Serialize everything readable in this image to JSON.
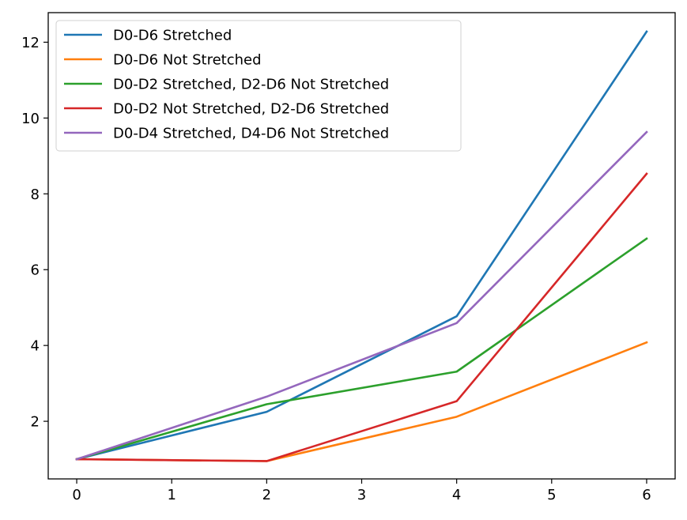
{
  "chart_data": {
    "type": "line",
    "title": "",
    "xlabel": "",
    "ylabel": "",
    "x": [
      0,
      2,
      4,
      6
    ],
    "xlim": [
      -0.3,
      6.3
    ],
    "ylim": [
      0.48,
      12.78
    ],
    "xticks": [
      0,
      1,
      2,
      3,
      4,
      5,
      6
    ],
    "yticks": [
      2,
      4,
      6,
      8,
      10,
      12
    ],
    "grid": false,
    "legend_position": "upper-left",
    "series": [
      {
        "name": "D0-D6 Stretched",
        "color": "#1f77b4",
        "values": [
          1.0,
          2.25,
          4.77,
          12.28
        ]
      },
      {
        "name": "D0-D6 Not Stretched",
        "color": "#ff7f0e",
        "values": [
          1.0,
          0.95,
          2.12,
          4.08
        ]
      },
      {
        "name": "D0-D2 Stretched, D2-D6 Not Stretched",
        "color": "#2ca02c",
        "values": [
          1.0,
          2.45,
          3.31,
          6.82
        ]
      },
      {
        "name": "D0-D2 Not Stretched, D2-D6 Stretched",
        "color": "#d62728",
        "values": [
          1.0,
          0.95,
          2.53,
          8.53
        ]
      },
      {
        "name": "D0-D4 Stretched, D4-D6 Not Stretched",
        "color": "#9467bd",
        "values": [
          1.0,
          2.65,
          4.59,
          9.63
        ]
      }
    ]
  }
}
